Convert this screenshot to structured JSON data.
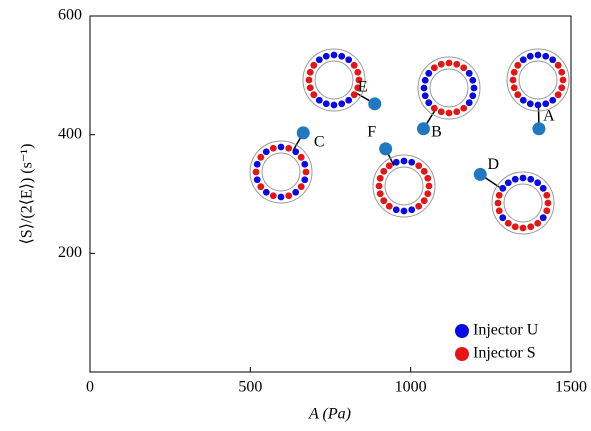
{
  "chart_data": {
    "type": "scatter",
    "xlabel": "A (Pa)",
    "ylabel": "⟨S⟩/(2⟨E⟩) (s⁻¹)",
    "x": [
      1400,
      1040,
      665,
      1217,
      888,
      922
    ],
    "y": [
      410,
      410,
      403,
      333,
      452,
      376
    ],
    "point_labels": [
      "A",
      "B",
      "C",
      "D",
      "E",
      "F"
    ],
    "color": "#1f78c1",
    "xlim": [
      0,
      1500
    ],
    "xticks": [
      0,
      500,
      1000,
      1500
    ],
    "ylim": [
      0,
      600
    ],
    "yticks": [
      200,
      400,
      600
    ],
    "legend": [
      {
        "name": "Injector U",
        "color": "#0a0ae6"
      },
      {
        "name": "Injector S",
        "color": "#e61414"
      }
    ],
    "legend_position": "lower right"
  }
}
